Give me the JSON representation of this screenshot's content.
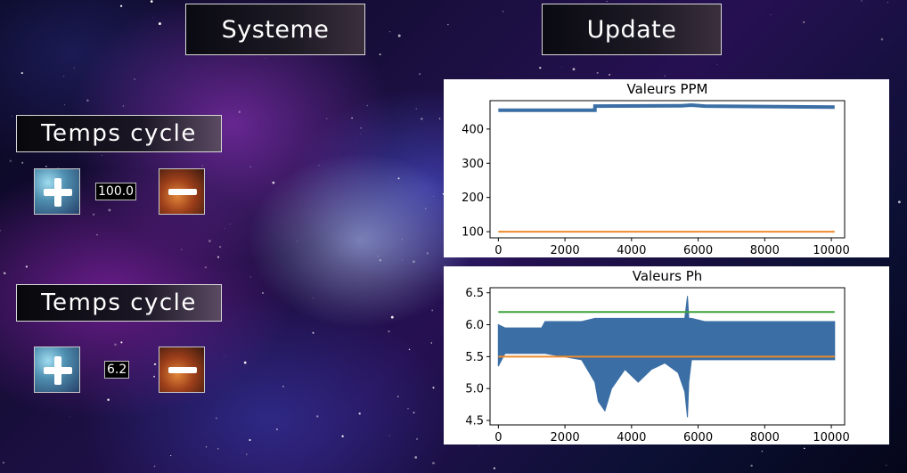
{
  "header": {
    "systeme_label": "Systeme",
    "update_label": "Update"
  },
  "controls": [
    {
      "label": "Temps cycle",
      "value": "100.0"
    },
    {
      "label": "Temps cycle",
      "value": "6.2"
    }
  ],
  "colors": {
    "series_main": "#3a6ea5",
    "series_orange": "#ee8a2e",
    "series_green": "#3ea23a"
  },
  "chart_data": [
    {
      "type": "line",
      "title": "Valeurs PPM",
      "xlim": [
        -250,
        10400
      ],
      "ylim": [
        82,
        483
      ],
      "xticks": [
        0,
        2000,
        4000,
        6000,
        8000,
        10000
      ],
      "yticks": [
        100,
        200,
        300,
        400
      ],
      "series": [
        {
          "color": "#3a6ea5",
          "x": [
            0,
            2900,
            2901,
            5500,
            5800,
            6200,
            10100
          ],
          "y": [
            455,
            455,
            467,
            468,
            470,
            467,
            464
          ]
        },
        {
          "color": "#ee8a2e",
          "x": [
            0,
            10100
          ],
          "y": [
            100,
            100
          ]
        }
      ]
    },
    {
      "type": "line",
      "title": "Valeurs Ph",
      "xlim": [
        -250,
        10400
      ],
      "ylim": [
        4.43,
        6.58
      ],
      "xticks": [
        0,
        2000,
        4000,
        6000,
        8000,
        10000
      ],
      "yticks": [
        4.5,
        5.0,
        5.5,
        6.0,
        6.5
      ],
      "series": [
        {
          "color": "#3a6ea5",
          "band": true,
          "x": [
            0,
            200,
            600,
            1300,
            1400,
            2500,
            2900,
            3000,
            3200,
            3400,
            3800,
            4200,
            4600,
            5000,
            5400,
            5600,
            5680,
            5720,
            5800,
            6200,
            7000,
            8000,
            9000,
            10100
          ],
          "ymin": [
            5.35,
            5.55,
            5.55,
            5.55,
            5.55,
            5.45,
            5.1,
            4.8,
            4.65,
            5.0,
            5.3,
            5.1,
            5.3,
            5.4,
            5.25,
            4.95,
            4.55,
            5.1,
            5.45,
            5.45,
            5.45,
            5.45,
            5.45,
            5.45
          ],
          "ymax": [
            6.0,
            5.95,
            5.95,
            5.95,
            6.05,
            6.05,
            6.1,
            6.1,
            6.1,
            6.1,
            6.1,
            6.1,
            6.1,
            6.1,
            6.1,
            6.1,
            6.45,
            6.1,
            6.1,
            6.05,
            6.05,
            6.05,
            6.05,
            6.05
          ]
        },
        {
          "color": "#ee8a2e",
          "x": [
            0,
            10100
          ],
          "y": [
            5.5,
            5.5
          ]
        },
        {
          "color": "#3ea23a",
          "x": [
            0,
            10100
          ],
          "y": [
            6.2,
            6.2
          ]
        }
      ]
    }
  ]
}
